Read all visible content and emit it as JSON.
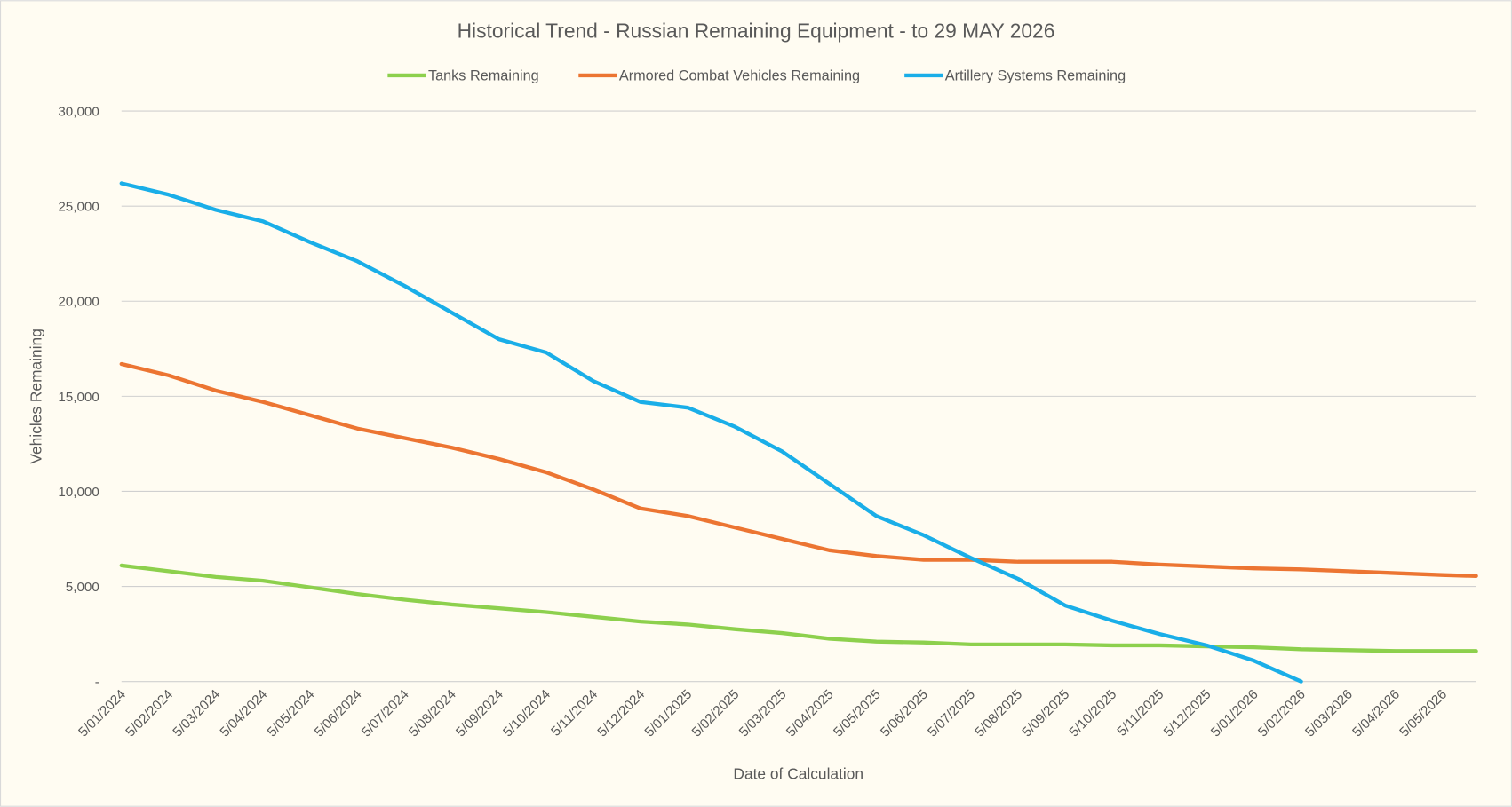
{
  "chart_data": {
    "type": "line",
    "title": "Historical Trend - Russian Remaining Equipment - to 29 MAY 2026",
    "x_label": "Date of Calculation",
    "y_label": "Vehicles Remaining",
    "categories": [
      "5/01/2024",
      "5/02/2024",
      "5/03/2024",
      "5/04/2024",
      "5/05/2024",
      "5/06/2024",
      "5/07/2024",
      "5/08/2024",
      "5/09/2024",
      "5/10/2024",
      "5/11/2024",
      "5/12/2024",
      "5/01/2025",
      "5/02/2025",
      "5/03/2025",
      "5/04/2025",
      "5/05/2025",
      "5/06/2025",
      "5/07/2025",
      "5/08/2025",
      "5/09/2025",
      "5/10/2025",
      "5/11/2025",
      "5/12/2025",
      "5/01/2026",
      "5/02/2026",
      "5/03/2026",
      "5/04/2026",
      "5/05/2026",
      null
    ],
    "series": [
      {
        "name": "Tanks Remaining",
        "color": "#8dd04d",
        "values": [
          6100,
          5800,
          5500,
          5300,
          4950,
          4600,
          4300,
          4050,
          3850,
          3650,
          3400,
          3150,
          3000,
          2750,
          2550,
          2250,
          2100,
          2050,
          1950,
          1950,
          1950,
          1900,
          1900,
          1850,
          1800,
          1700,
          1650,
          1600,
          1600,
          1600
        ]
      },
      {
        "name": "Armored Combat Vehicles Remaining",
        "color": "#ec7532",
        "values": [
          16700,
          16100,
          15300,
          14700,
          14000,
          13300,
          12800,
          12300,
          11700,
          11000,
          10100,
          9100,
          8700,
          8100,
          7500,
          6900,
          6600,
          6400,
          6400,
          6300,
          6300,
          6300,
          6150,
          6050,
          5950,
          5900,
          5800,
          5700,
          5600,
          5550
        ]
      },
      {
        "name": "Artillery Systems Remaining",
        "color": "#1aaee8",
        "values": [
          26200,
          25600,
          24800,
          24200,
          23100,
          22100,
          20800,
          19400,
          18000,
          17300,
          15800,
          14700,
          14400,
          13400,
          12100,
          10400,
          8700,
          7700,
          6500,
          5400,
          4000,
          3200,
          2500,
          1900,
          1100,
          0,
          null,
          null,
          null,
          null
        ]
      }
    ],
    "ylim": [
      0,
      30000
    ],
    "yticks": [
      {
        "value": 0,
        "label": "-"
      },
      {
        "value": 5000,
        "label": "5,000"
      },
      {
        "value": 10000,
        "label": "10,000"
      },
      {
        "value": 15000,
        "label": "15,000"
      },
      {
        "value": 20000,
        "label": "20,000"
      },
      {
        "value": 25000,
        "label": "25,000"
      },
      {
        "value": 30000,
        "label": "30,000"
      }
    ],
    "grid": true,
    "legend": "top"
  }
}
